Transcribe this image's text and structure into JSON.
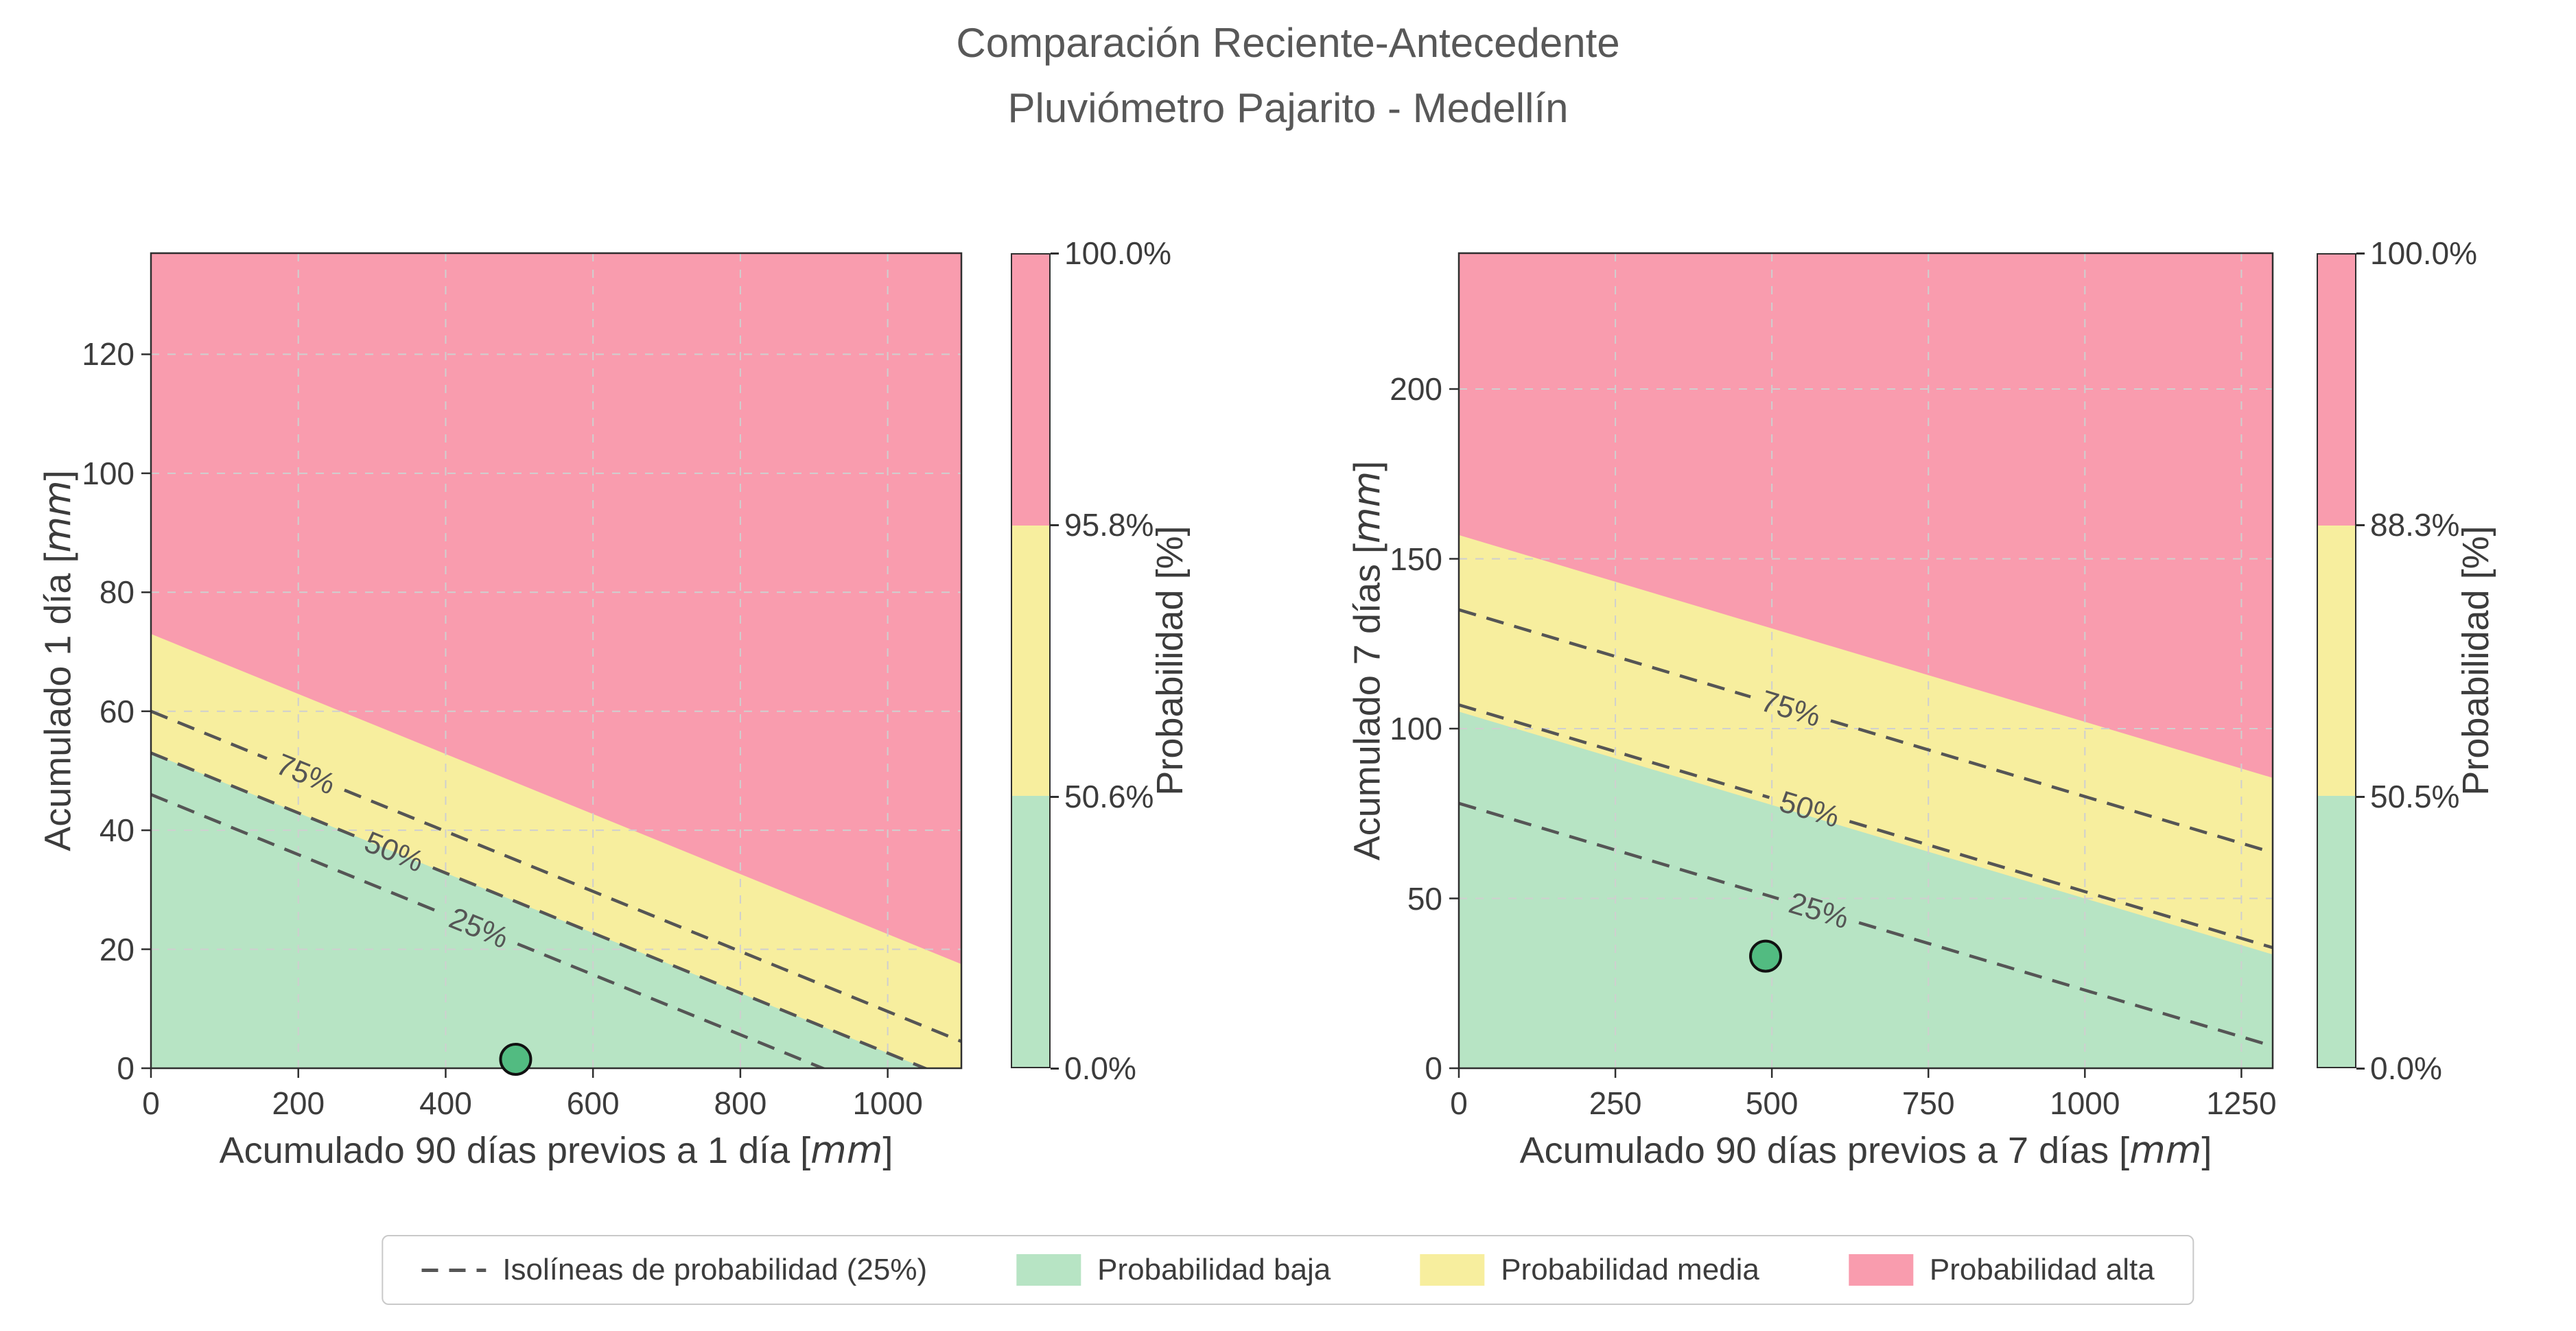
{
  "title": {
    "line1": "Comparación Reciente-Antecedente",
    "line2": "Pluviómetro Pajarito - Medellín"
  },
  "colors": {
    "low": "#b7e4c4",
    "medium": "#f7ee9e",
    "high": "#f99cae",
    "isoline": "#555555",
    "marker": "#52bb81",
    "grid": "#cfcfcf",
    "frame": "#2f2f2f",
    "text": "#3c3c3c",
    "title_text": "#585858"
  },
  "chart_data": {
    "type": "area",
    "panels": [
      {
        "id": "acumulado-1-dia",
        "xlabel_text": "Acumulado 90 días previos a 1 día",
        "xlabel_unit": "mm",
        "ylabel_text": "Acumulado 1 día",
        "ylabel_unit": "mm",
        "xlim": [
          0,
          1100
        ],
        "ylim": [
          0,
          137
        ],
        "xticks": [
          0,
          200,
          400,
          600,
          800,
          1000
        ],
        "yticks": [
          0,
          20,
          40,
          60,
          80,
          100,
          120
        ],
        "zones": {
          "green_yellow_boundary": {
            "y_at_xmin": 53,
            "y_at_xmax": -2.5
          },
          "yellow_pink_boundary": {
            "y_at_xmin": 73,
            "y_at_xmax": 17.5
          }
        },
        "isolines": [
          {
            "label": "75%",
            "y_at_xmin": 60,
            "y_at_xmax": 4.5,
            "label_x": 210
          },
          {
            "label": "50%",
            "y_at_xmin": 53,
            "y_at_xmax": -2.5,
            "label_x": 330
          },
          {
            "label": "25%",
            "y_at_xmin": 46,
            "y_at_xmax": -9.5,
            "label_x": 445
          }
        ],
        "point": {
          "x": 495,
          "y": 1.5
        },
        "colorbar": {
          "label": "Probabilidad [%]",
          "tick_labels": [
            "0.0%",
            "50.6%",
            "95.8%",
            "100.0%"
          ]
        }
      },
      {
        "id": "acumulado-7-dias",
        "xlabel_text": "Acumulado 90 días previos a 7 días",
        "xlabel_unit": "mm",
        "ylabel_text": "Acumulado 7 días",
        "ylabel_unit": "mm",
        "xlim": [
          0,
          1300
        ],
        "ylim": [
          0,
          240
        ],
        "xticks": [
          0,
          250,
          500,
          750,
          1000,
          1250
        ],
        "yticks": [
          0,
          50,
          100,
          150,
          200
        ],
        "zones": {
          "green_yellow_boundary": {
            "y_at_xmin": 105,
            "y_at_xmax": 33.5
          },
          "yellow_pink_boundary": {
            "y_at_xmin": 157,
            "y_at_xmax": 85.5
          }
        },
        "isolines": [
          {
            "label": "75%",
            "y_at_xmin": 135,
            "y_at_xmax": 63.5,
            "label_x": 530
          },
          {
            "label": "50%",
            "y_at_xmin": 107,
            "y_at_xmax": 35.5,
            "label_x": 560
          },
          {
            "label": "25%",
            "y_at_xmin": 78,
            "y_at_xmax": 6.5,
            "label_x": 575
          }
        ],
        "point": {
          "x": 490,
          "y": 33
        },
        "colorbar": {
          "label": "Probabilidad [%]",
          "tick_labels": [
            "0.0%",
            "50.5%",
            "88.3%",
            "100.0%"
          ]
        }
      }
    ]
  },
  "legend": {
    "items": [
      {
        "type": "dashed-line",
        "label": "Isolíneas de probabilidad (25%)"
      },
      {
        "type": "swatch-low",
        "label": "Probabilidad baja"
      },
      {
        "type": "swatch-medium",
        "label": "Probabilidad media"
      },
      {
        "type": "swatch-high",
        "label": "Probabilidad alta"
      }
    ]
  }
}
